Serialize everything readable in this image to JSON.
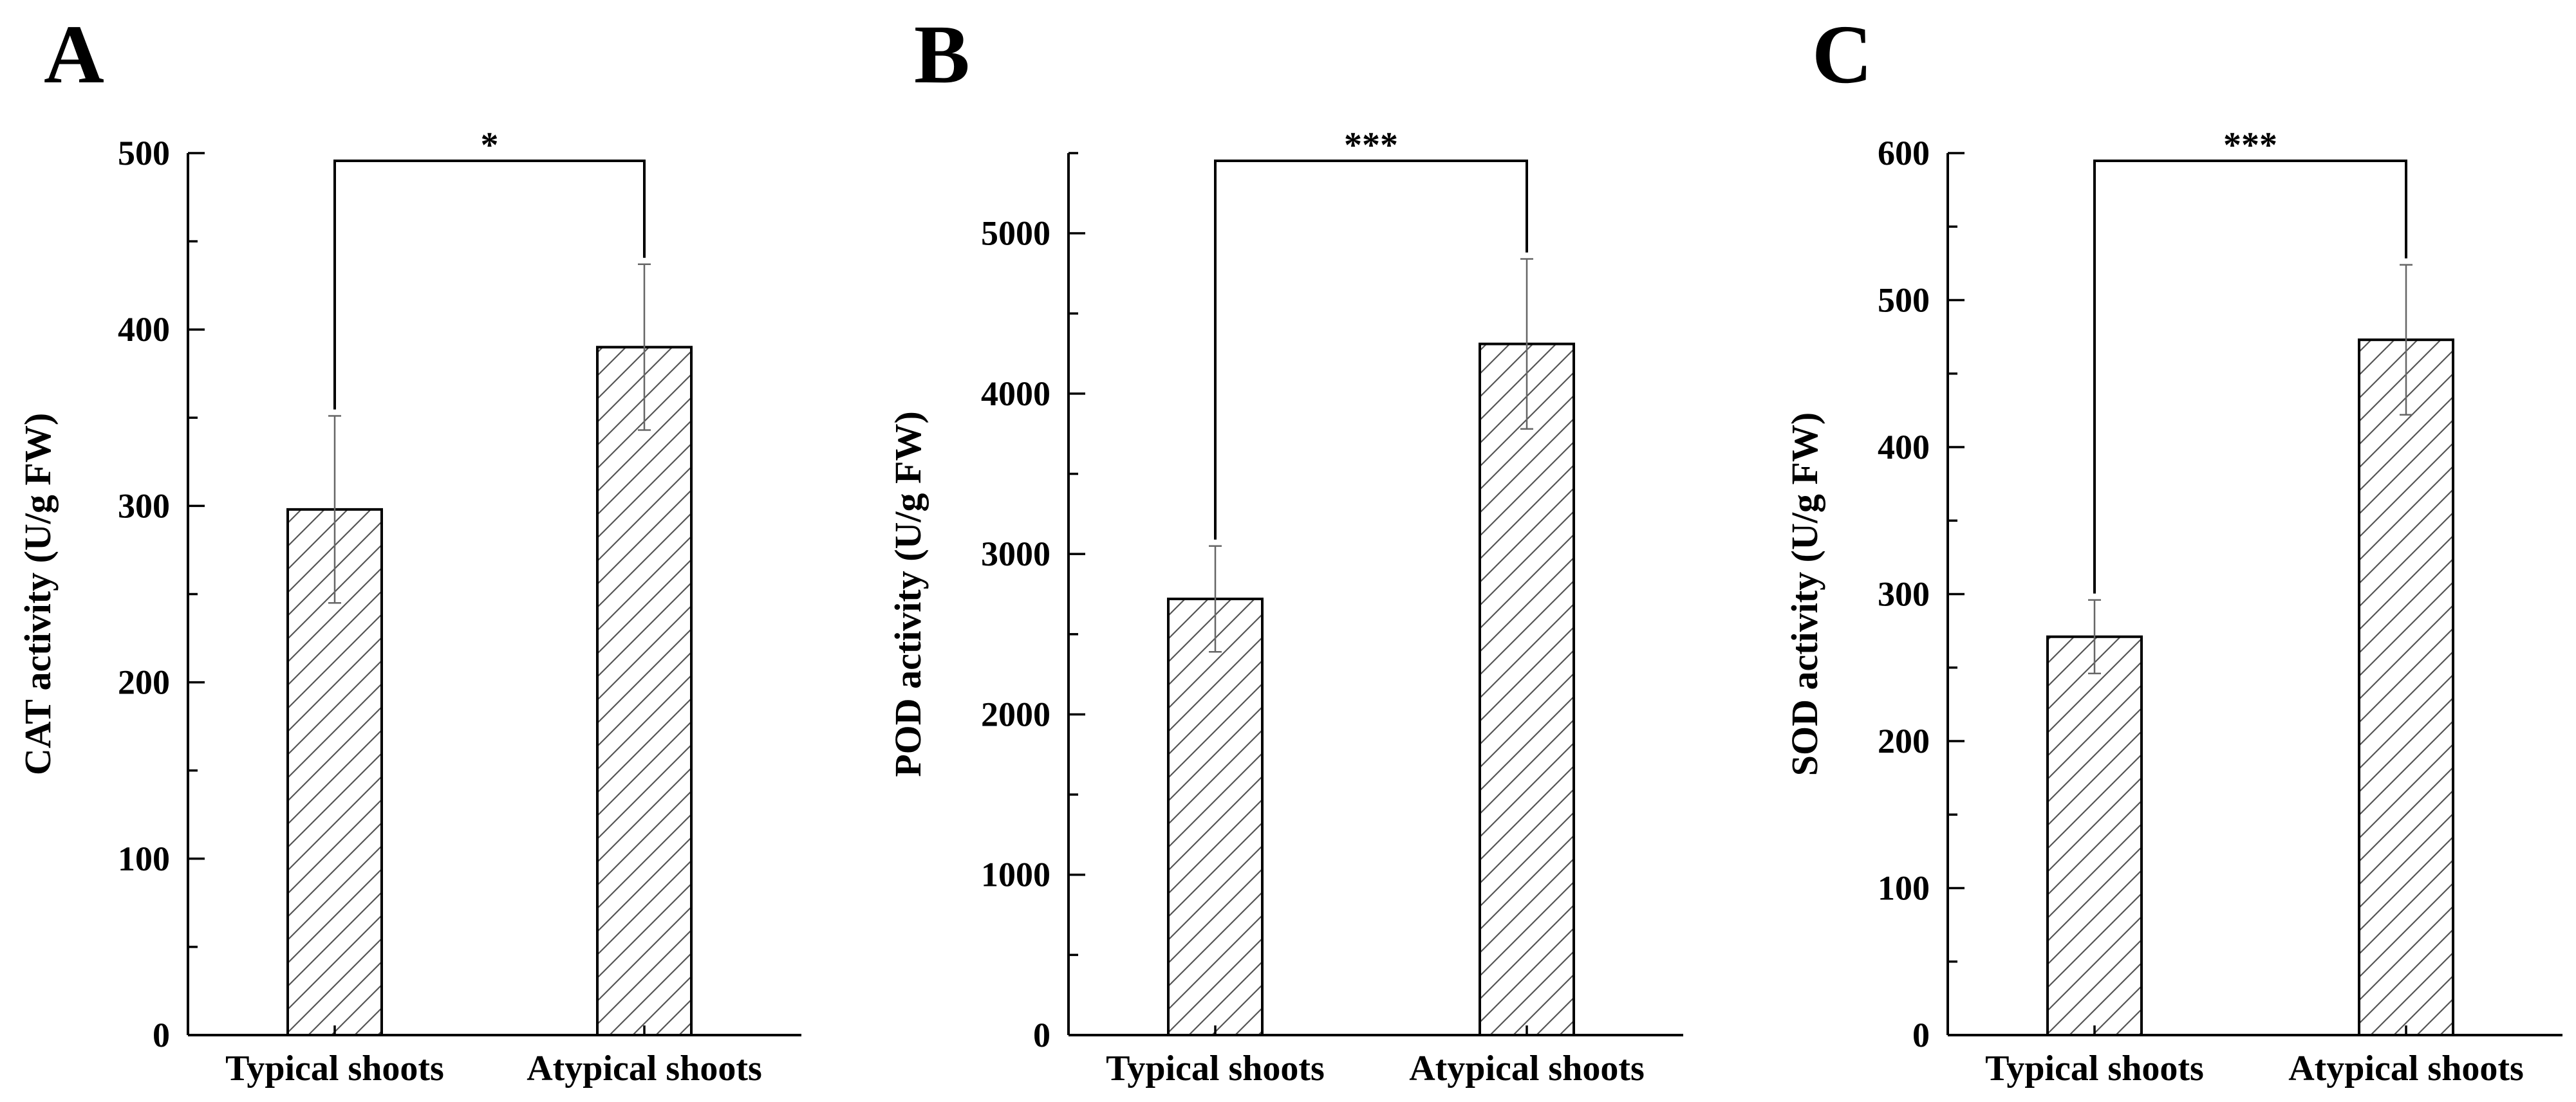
{
  "chart_data": [
    {
      "type": "bar",
      "panel": "A",
      "categories": [
        "Typical shoots",
        "Atypical shoots"
      ],
      "values": [
        298,
        390
      ],
      "errors": [
        53,
        47
      ],
      "ylabel": "CAT activity (U/g FW)",
      "xlabel": "",
      "ylim": [
        0,
        500
      ],
      "major_ticks": [
        0,
        100,
        200,
        300,
        400,
        500
      ],
      "minor_step": 50,
      "significance": {
        "from": 0,
        "to": 1,
        "label": "*"
      },
      "pattern": "diagonal-hatch",
      "legend": "none"
    },
    {
      "type": "bar",
      "panel": "B",
      "categories": [
        "Typical shoots",
        "Atypical shoots"
      ],
      "values": [
        2720,
        4310
      ],
      "errors": [
        330,
        530
      ],
      "ylabel": "POD activity (U/g FW)",
      "xlabel": "",
      "ylim": [
        0,
        5500
      ],
      "major_ticks": [
        0,
        1000,
        2000,
        3000,
        4000,
        5000
      ],
      "minor_step": 500,
      "significance": {
        "from": 0,
        "to": 1,
        "label": "***"
      },
      "pattern": "diagonal-hatch",
      "legend": "none"
    },
    {
      "type": "bar",
      "panel": "C",
      "categories": [
        "Typical shoots",
        "Atypical shoots"
      ],
      "values": [
        271,
        473
      ],
      "errors": [
        25,
        51
      ],
      "ylabel": "SOD activity (U/g FW)",
      "xlabel": "",
      "ylim": [
        0,
        600
      ],
      "major_ticks": [
        0,
        100,
        200,
        300,
        400,
        500,
        600
      ],
      "minor_step": 50,
      "significance": {
        "from": 0,
        "to": 1,
        "label": "***"
      },
      "pattern": "diagonal-hatch",
      "legend": "none"
    }
  ]
}
